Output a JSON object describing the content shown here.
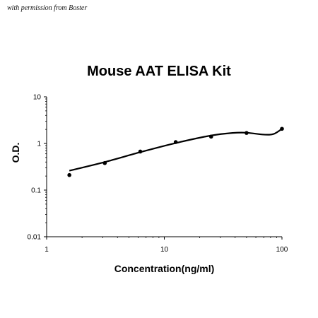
{
  "watermark": "with permission from Boster",
  "chart_data": {
    "type": "line",
    "title": "Mouse AAT ELISA Kit",
    "xlabel": "Concentration(ng/ml)",
    "ylabel": "O.D.",
    "x_scale": "log",
    "y_scale": "log",
    "xlim": [
      1,
      100
    ],
    "ylim": [
      0.01,
      10
    ],
    "x_ticks": [
      "1",
      "10",
      "100"
    ],
    "y_ticks": [
      "10",
      "1",
      "0.1",
      "0.01"
    ],
    "grid": false,
    "legend": "none",
    "series": [
      {
        "points": [
          {
            "x": 1.56,
            "y": 0.21
          },
          {
            "x": 3.12,
            "y": 0.38
          },
          {
            "x": 6.25,
            "y": 0.67
          },
          {
            "x": 12.5,
            "y": 1.07
          },
          {
            "x": 25,
            "y": 1.4
          },
          {
            "x": 50,
            "y": 1.68
          },
          {
            "x": 100,
            "y": 2.06
          }
        ],
        "curve": [
          {
            "x": 1.56,
            "y": 0.26
          },
          {
            "x": 3.12,
            "y": 0.4
          },
          {
            "x": 6.25,
            "y": 0.65
          },
          {
            "x": 12.5,
            "y": 1.02
          },
          {
            "x": 25,
            "y": 1.48
          },
          {
            "x": 38,
            "y": 1.68
          },
          {
            "x": 50,
            "y": 1.7
          },
          {
            "x": 70,
            "y": 1.55
          },
          {
            "x": 85,
            "y": 1.6
          },
          {
            "x": 100,
            "y": 2.06
          }
        ]
      }
    ],
    "colors": {
      "line": "#000000",
      "marker": "#000000"
    }
  }
}
